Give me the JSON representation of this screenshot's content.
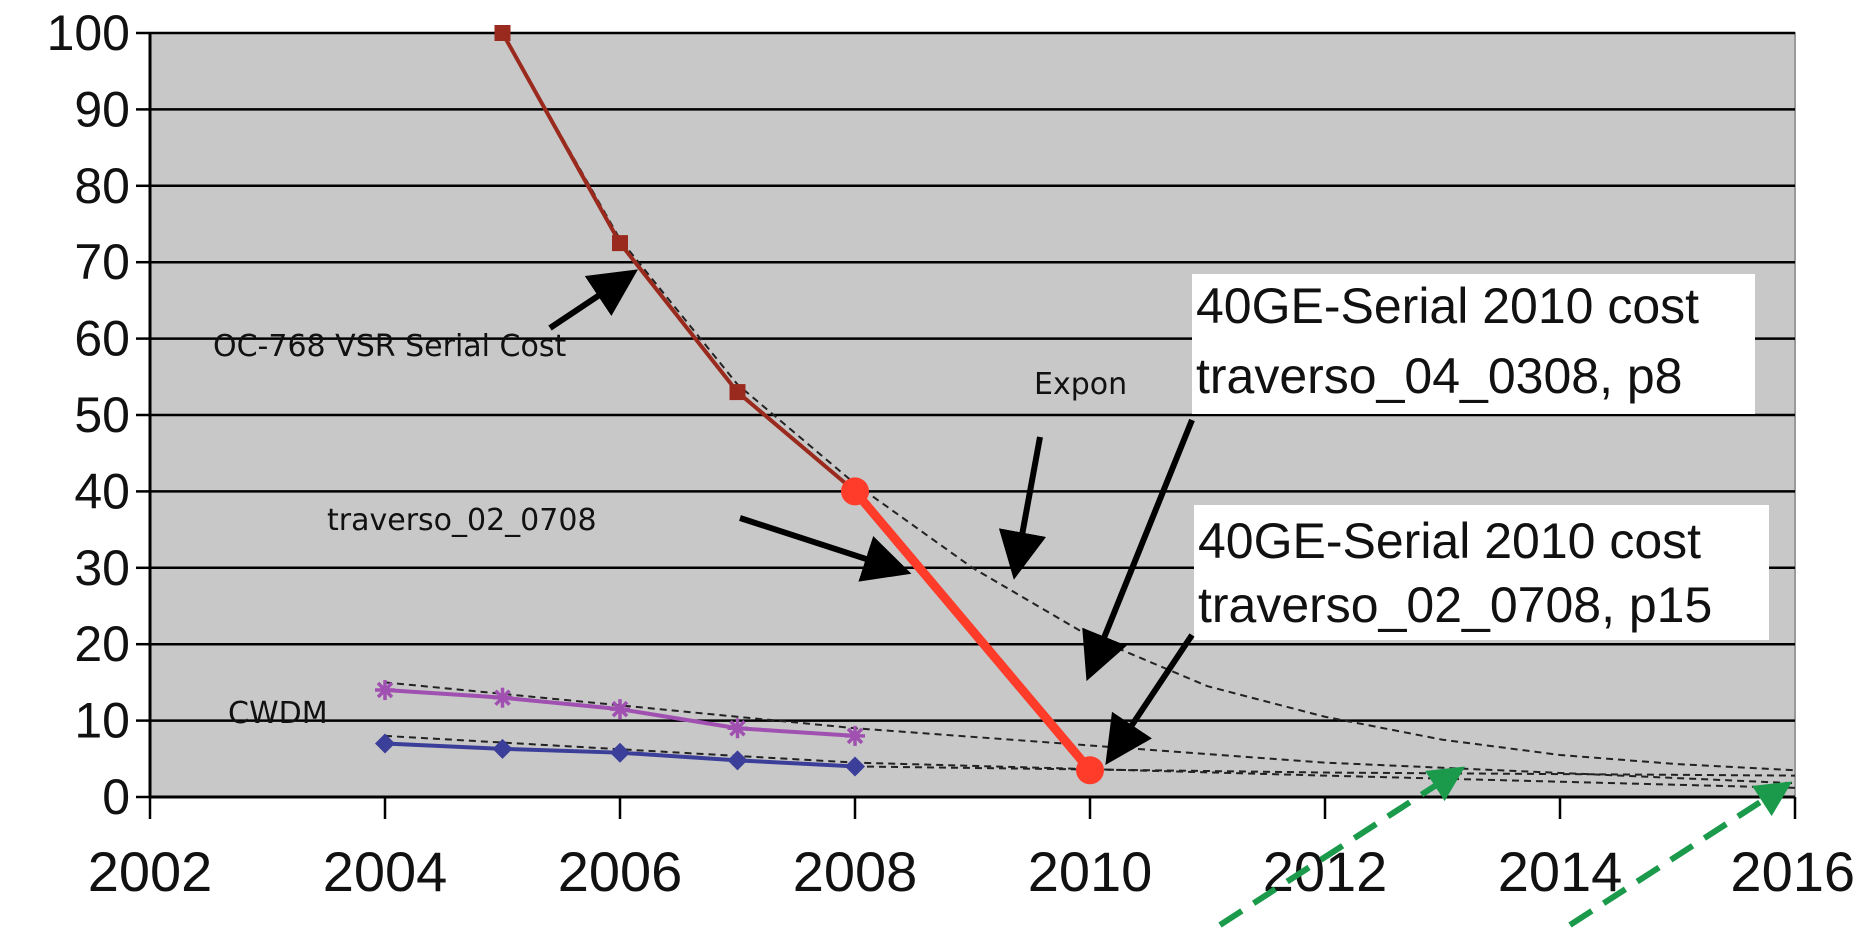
{
  "chart_data": {
    "type": "line",
    "xlim": [
      2002,
      2016
    ],
    "ylim": [
      0,
      100
    ],
    "x_ticks": [
      "2002",
      "2004",
      "2006",
      "2008",
      "2010",
      "2012",
      "2014",
      "2016"
    ],
    "y_ticks": [
      "0",
      "10",
      "20",
      "30",
      "40",
      "50",
      "60",
      "70",
      "80",
      "90",
      "100"
    ],
    "grid": true,
    "plot_background": "#c8c8c8",
    "series": [
      {
        "role": "oc768",
        "color": "#9a2a1e",
        "marker": "square",
        "x": [
          2005,
          2006,
          2007,
          2008
        ],
        "y": [
          100,
          72.5,
          53,
          40
        ]
      },
      {
        "role": "projection",
        "color": "#ff3b2a",
        "marker": "circle",
        "x": [
          2008,
          2010
        ],
        "y": [
          40,
          3.5
        ]
      },
      {
        "role": "cwdm-upper",
        "color": "#a050b0",
        "marker": "asterisk",
        "x": [
          2004,
          2005,
          2006,
          2007,
          2008
        ],
        "y": [
          14,
          13,
          11.5,
          9,
          8
        ]
      },
      {
        "role": "cwdm-lower",
        "color": "#3b3f99",
        "marker": "diamond",
        "x": [
          2004,
          2005,
          2006,
          2007,
          2008
        ],
        "y": [
          7,
          6.3,
          5.8,
          4.8,
          4
        ]
      }
    ],
    "trend_lines": [
      {
        "x": [
          2005,
          2006,
          2007,
          2008,
          2009,
          2010,
          2011,
          2012,
          2013,
          2014,
          2015,
          2016
        ],
        "y": [
          100,
          73,
          54,
          41,
          30,
          21,
          14.5,
          10.5,
          7.5,
          5.5,
          4.3,
          3.5
        ]
      },
      {
        "x": [
          2004,
          2008,
          2012,
          2016
        ],
        "y": [
          15,
          9,
          4.5,
          1.8
        ]
      },
      {
        "x": [
          2004,
          2008,
          2012,
          2016
        ],
        "y": [
          8,
          4.5,
          2.8,
          1.2
        ]
      },
      {
        "x": [
          2008,
          2012,
          2016
        ],
        "y": [
          4,
          3.2,
          2.8
        ]
      }
    ],
    "annotations": {
      "oc768": "OC-768 VSR Serial Cost",
      "expon": "Expon",
      "traverso": "traverso_02_0708",
      "cwdm": "CWDM",
      "callout1": [
        "40GE-Serial 2010 cost",
        "traverso_04_0308, p8"
      ],
      "callout2": [
        "40GE-Serial 2010 cost",
        "traverso_02_0708, p15"
      ]
    },
    "green_arrows_color": "#1a9a4a"
  }
}
